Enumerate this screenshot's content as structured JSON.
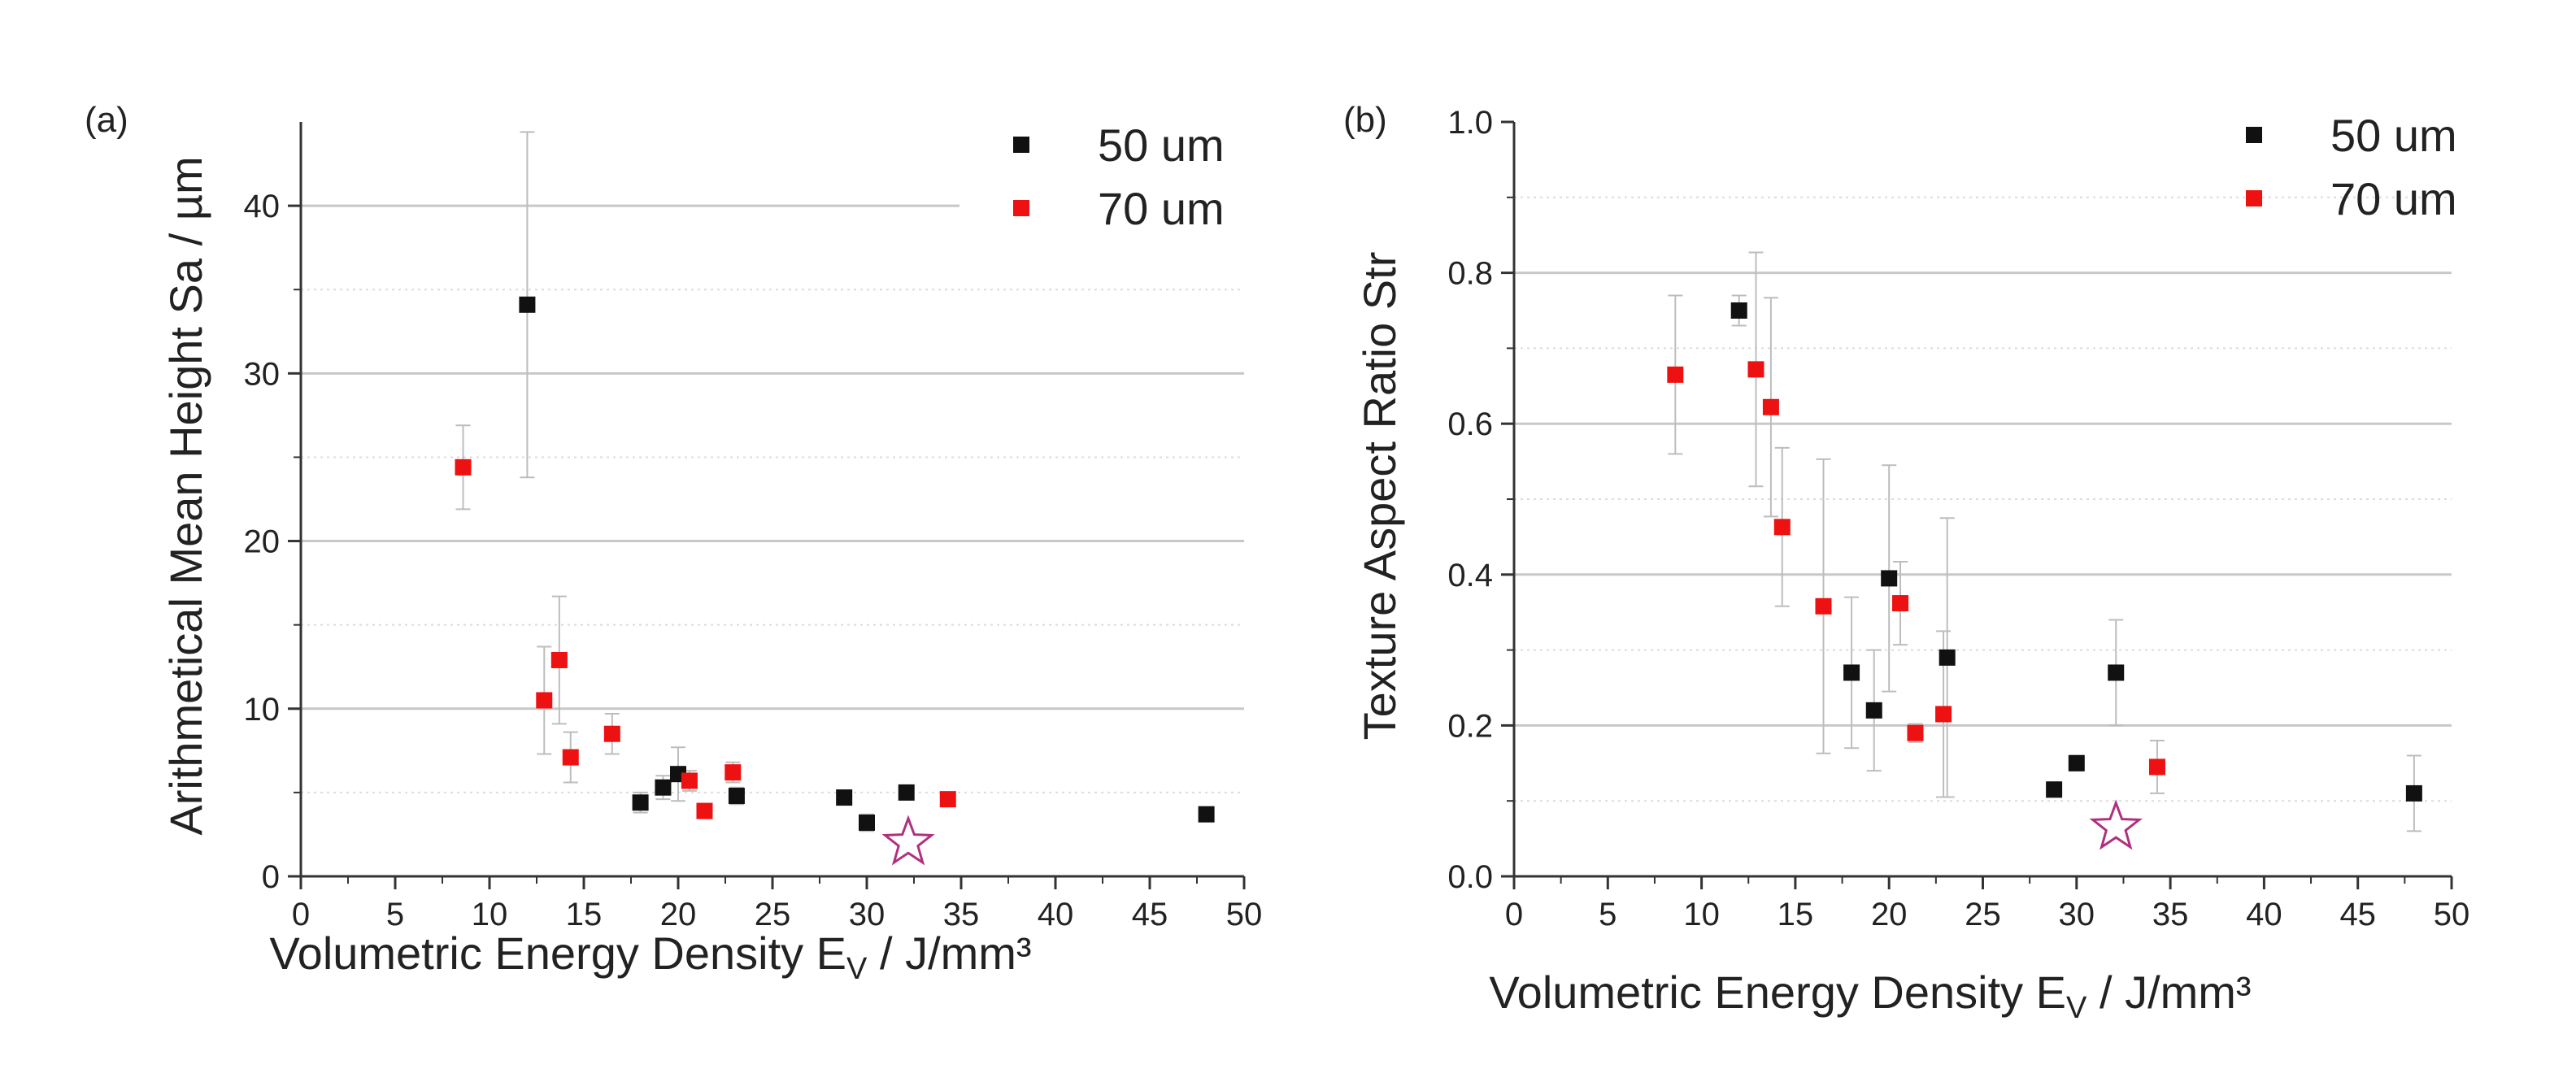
{
  "chart_data": [
    {
      "type": "scatter",
      "panel_label": "(a)",
      "xlabel_main": "Volumetric Energy Density E",
      "xlabel_sub": "V",
      "xlabel_unit": " / J/mm³",
      "ylabel": "Arithmetical Mean Height Sa / µm",
      "xlim": [
        0,
        50
      ],
      "ylim": [
        0,
        45
      ],
      "xticks": [
        0,
        5,
        10,
        15,
        20,
        25,
        30,
        35,
        40,
        45,
        50
      ],
      "yticks": [
        0,
        10,
        20,
        30,
        40
      ],
      "major_grid": [
        10,
        20,
        30,
        40
      ],
      "minor_grid": [
        5,
        15,
        25,
        35
      ],
      "legend_position": "top-right",
      "series": [
        {
          "name": "50 um",
          "color": "#111111",
          "points": [
            {
              "x": 12.0,
              "y": 34.1,
              "err": 10.3
            },
            {
              "x": 18.0,
              "y": 4.4,
              "err": 0.6
            },
            {
              "x": 19.2,
              "y": 5.3,
              "err": 0.7
            },
            {
              "x": 20.0,
              "y": 6.1,
              "err": 1.6
            },
            {
              "x": 23.1,
              "y": 4.8,
              "err": 0.5
            },
            {
              "x": 28.8,
              "y": 4.7,
              "err": 0.4
            },
            {
              "x": 30.0,
              "y": 3.2,
              "err": 0.5
            },
            {
              "x": 32.1,
              "y": 5.0,
              "err": 0.4
            },
            {
              "x": 48.0,
              "y": 3.7,
              "err": 0.4
            }
          ]
        },
        {
          "name": "70 um",
          "color": "#ee1111",
          "points": [
            {
              "x": 8.6,
              "y": 24.4,
              "err": 2.5
            },
            {
              "x": 12.9,
              "y": 10.5,
              "err": 3.2
            },
            {
              "x": 13.7,
              "y": 12.9,
              "err": 3.8
            },
            {
              "x": 14.3,
              "y": 7.1,
              "err": 1.5
            },
            {
              "x": 16.5,
              "y": 8.5,
              "err": 1.2
            },
            {
              "x": 20.6,
              "y": 5.7,
              "err": 0.6
            },
            {
              "x": 21.4,
              "y": 3.9,
              "err": 0.4
            },
            {
              "x": 22.9,
              "y": 6.2,
              "err": 0.6
            },
            {
              "x": 34.3,
              "y": 4.6,
              "err": 0.4
            }
          ]
        }
      ],
      "highlight": {
        "x": 32.2,
        "y": 2.0,
        "marker": "star",
        "color": "#b03080"
      }
    },
    {
      "type": "scatter",
      "panel_label": "(b)",
      "xlabel_main": "Volumetric Energy Density E",
      "xlabel_sub": "V",
      "xlabel_unit": " / J/mm³",
      "ylabel": "Texture Aspect Ratio Str",
      "xlim": [
        0,
        50
      ],
      "ylim": [
        0,
        1.0
      ],
      "xticks": [
        0,
        5,
        10,
        15,
        20,
        25,
        30,
        35,
        40,
        45,
        50
      ],
      "yticks": [
        0.0,
        0.2,
        0.4,
        0.6,
        0.8,
        1.0
      ],
      "ytick_labels": [
        "0.0",
        "0.2",
        "0.4",
        "0.6",
        "0.8",
        "1.0"
      ],
      "major_grid": [
        0.2,
        0.4,
        0.6,
        0.8
      ],
      "minor_grid": [
        0.1,
        0.3,
        0.5,
        0.7,
        0.9
      ],
      "legend_position": "top-right",
      "series": [
        {
          "name": "50 um",
          "color": "#111111",
          "points": [
            {
              "x": 12.0,
              "y": 0.75,
              "err": 0.02
            },
            {
              "x": 18.0,
              "y": 0.27,
              "err": 0.1
            },
            {
              "x": 19.2,
              "y": 0.22,
              "err": 0.08
            },
            {
              "x": 20.0,
              "y": 0.395,
              "err": 0.15
            },
            {
              "x": 23.1,
              "y": 0.29,
              "err": 0.185
            },
            {
              "x": 28.8,
              "y": 0.115,
              "err": 0.01
            },
            {
              "x": 30.0,
              "y": 0.15,
              "err": 0.01
            },
            {
              "x": 32.1,
              "y": 0.27,
              "err": 0.07
            },
            {
              "x": 48.0,
              "y": 0.11,
              "err": 0.05
            }
          ]
        },
        {
          "name": "70 um",
          "color": "#ee1111",
          "points": [
            {
              "x": 8.6,
              "y": 0.665,
              "err": 0.105
            },
            {
              "x": 12.9,
              "y": 0.672,
              "err": 0.155
            },
            {
              "x": 13.7,
              "y": 0.622,
              "err": 0.145
            },
            {
              "x": 14.3,
              "y": 0.463,
              "err": 0.105
            },
            {
              "x": 16.5,
              "y": 0.358,
              "err": 0.195
            },
            {
              "x": 20.6,
              "y": 0.362,
              "err": 0.055
            },
            {
              "x": 21.4,
              "y": 0.19,
              "err": 0.012
            },
            {
              "x": 22.9,
              "y": 0.215,
              "err": 0.11
            },
            {
              "x": 34.3,
              "y": 0.145,
              "err": 0.035
            }
          ]
        }
      ],
      "highlight": {
        "x": 32.1,
        "y": 0.065,
        "marker": "star",
        "color": "#b03080"
      }
    }
  ]
}
